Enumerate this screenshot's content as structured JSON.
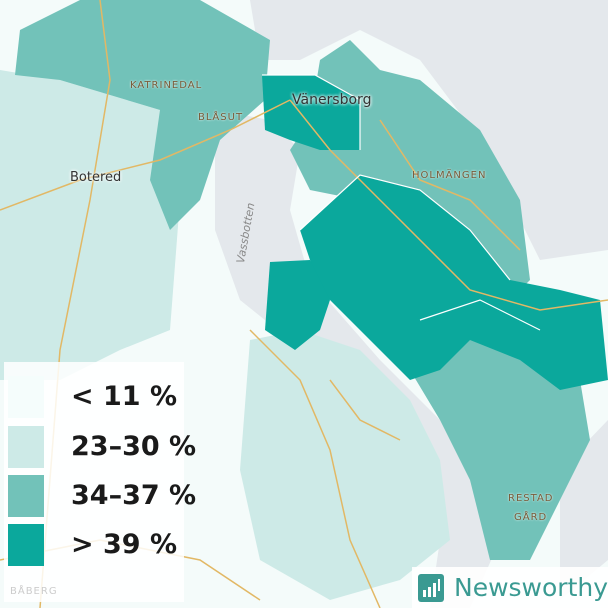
{
  "colors": {
    "water": "#e4e8ec",
    "land": "#f4fbfa",
    "road": "#e2b865",
    "band_1": "#f5fdfc",
    "band_2": "#cdeae7",
    "band_3": "#72c2b9",
    "band_4": "#0ba89c",
    "brand": "#3a9a92"
  },
  "places": {
    "katrinedal": "KATRINEDAL",
    "blasut": "BLÅSUT",
    "vanersborg": "Vänersborg",
    "botered": "Botered",
    "holmangen": "HOLMÄNGEN",
    "vassbotten": "Vassbotten",
    "restad_1": "RESTAD",
    "restad_2": "GÅRD",
    "baberg": "BÅBERG"
  },
  "legend": {
    "items": [
      {
        "label": "< 11 %",
        "color": "#f5fdfc"
      },
      {
        "label": "23–30 %",
        "color": "#cdeae7"
      },
      {
        "label": "34–37 %",
        "color": "#72c2b9"
      },
      {
        "label": "> 39 %",
        "color": "#0ba89c"
      }
    ]
  },
  "brand": {
    "name": "Newsworthy",
    "icon": "bar-chart-logo-icon"
  }
}
